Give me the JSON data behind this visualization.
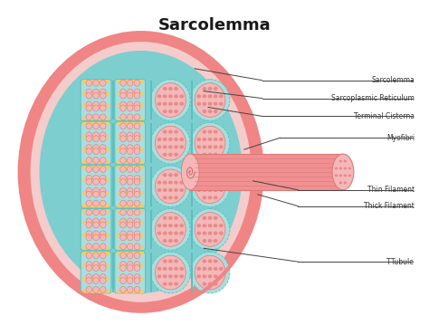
{
  "title": "Sarcolemma",
  "title_fontsize": 13,
  "title_fontweight": "bold",
  "background_color": "#ffffff",
  "labels": [
    "Sarcolemma",
    "Sarcoplasmic Reticulum",
    "Terminal Cisterna",
    "Myofibri",
    "Thin Filament",
    "Thick Filament",
    "T-Tubule"
  ],
  "colors": {
    "outer_pink": "#F08585",
    "outer_pink_light": "#F5AAAA",
    "outer_ring_inner": "#FFCCCC",
    "teal_bg": "#7DCFCF",
    "teal_light": "#A8DEDE",
    "myofibril_bg": "#F5B8B8",
    "myofibril_dots": "#E07878",
    "yellow_band": "#E8CF70",
    "sarcolemma_ring": "#F5CCCC",
    "rod_pink": "#F09090",
    "rod_stripe": "#D07070",
    "annotation_line": "#444444",
    "label_text": "#333333",
    "teal_separator": "#5BBFBF"
  }
}
